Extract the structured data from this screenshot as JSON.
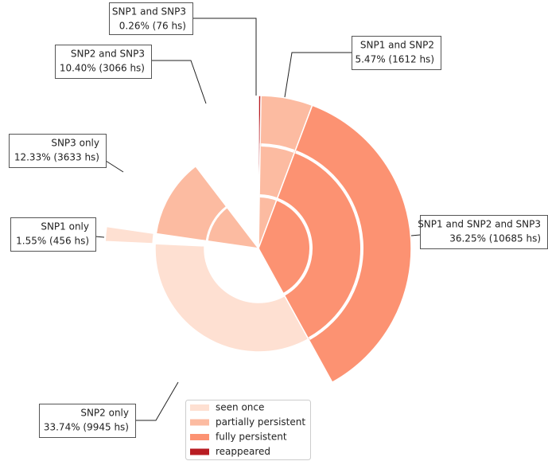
{
  "chart_data": {
    "type": "radial",
    "categories": [
      "SNP1 and SNP3",
      "SNP1 and SNP2",
      "SNP1 and SNP2 and SNP3",
      "SNP2 only",
      "SNP1 only",
      "SNP3 only",
      "SNP2 and SNP3"
    ],
    "values": [
      0.26,
      5.47,
      36.25,
      33.74,
      1.55,
      12.33,
      10.4
    ],
    "value_labels": [
      "0.26% (76 hs)",
      "5.47% (1612 hs)",
      "36.25% (10685 hs)",
      "33.74% (9945 hs)",
      "1.55% (456 hs)",
      "12.33% (3633 hs)",
      "10.40% (3066 hs)"
    ],
    "colors": [
      "#b81c22",
      "#fcbba1",
      "#fc9272",
      "#fee0d2",
      "#fee0d2",
      "#fcbba1",
      "#ffffff"
    ],
    "legend": [
      {
        "name": "seen once",
        "color": "#fee0d2"
      },
      {
        "name": "partially persistent",
        "color": "#fcbba1"
      },
      {
        "name": "fully persistent",
        "color": "#fc9272"
      },
      {
        "name": "reappeared",
        "color": "#b81c22"
      }
    ],
    "legend_position": "lower center"
  }
}
